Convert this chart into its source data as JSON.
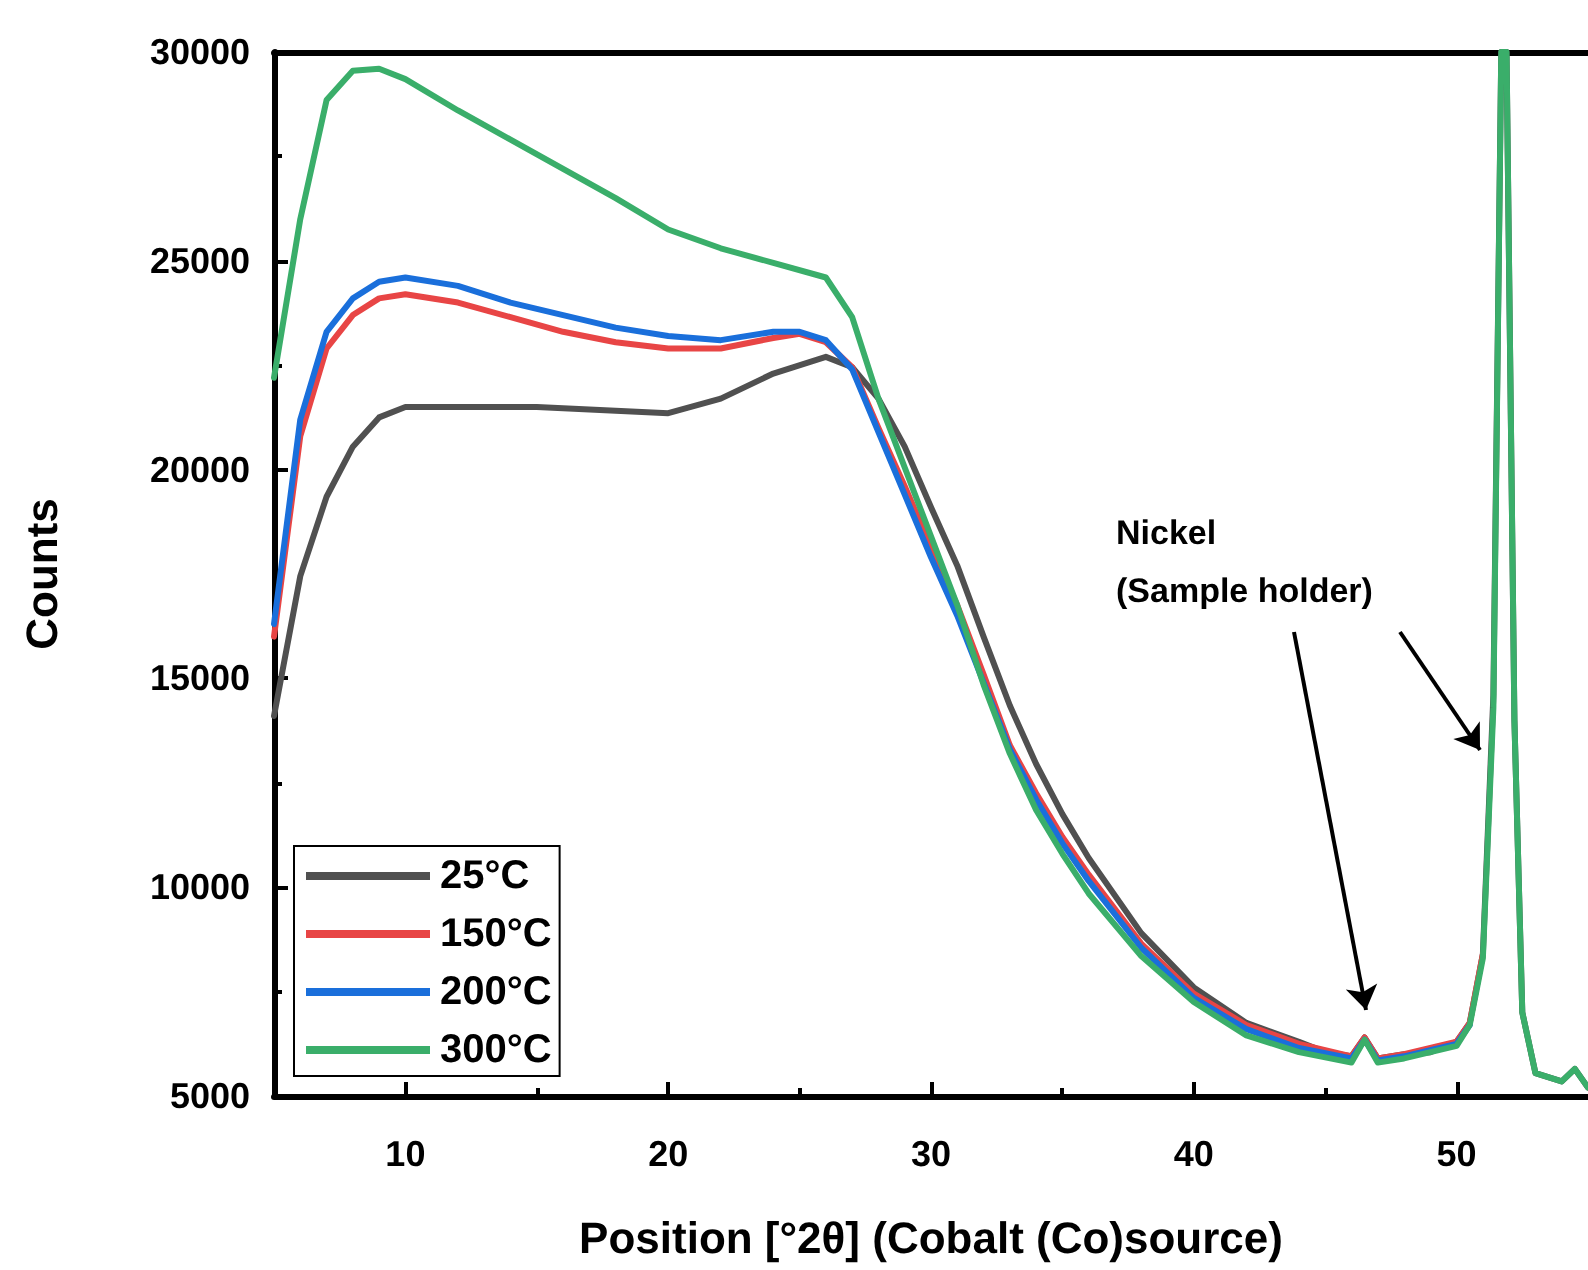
{
  "chart_data": {
    "type": "line",
    "xlabel": "Position [°2θ] (Cobalt (Co)source)",
    "ylabel": "Counts",
    "xlim": [
      5,
      55
    ],
    "xticks": [
      10,
      20,
      30,
      40,
      50
    ],
    "ylim": [
      5000,
      30000
    ],
    "yticks": [
      5000,
      10000,
      15000,
      20000,
      25000,
      30000
    ],
    "grid": false,
    "legend": "bottom left",
    "marker": "none",
    "line_style": "solid",
    "annotations": [
      "Nickel",
      "(Sample holder)"
    ],
    "series": [
      {
        "name": "25°C",
        "color": "#505050",
        "x": [
          5,
          6,
          7,
          8,
          9,
          10,
          15,
          20,
          22,
          24,
          26,
          27,
          28,
          29,
          30,
          31,
          32,
          33,
          34,
          35,
          36,
          38,
          40,
          42,
          44,
          45,
          46,
          46.5,
          47,
          48,
          49,
          50,
          50.5,
          51,
          51.4,
          51.7,
          51.9,
          52.2,
          52.5,
          53,
          54,
          54.5,
          55
        ],
        "values": [
          14100,
          17450,
          19350,
          20550,
          21250,
          21500,
          21500,
          21350,
          21700,
          22300,
          22700,
          22450,
          21700,
          20550,
          19100,
          17700,
          16000,
          14350,
          12950,
          11750,
          10700,
          8900,
          7600,
          6750,
          6300,
          6050,
          5950,
          6400,
          5900,
          6000,
          6050,
          6300,
          6750,
          8400,
          14600,
          30000,
          30000,
          14000,
          7000,
          5550,
          5350,
          5650,
          5200
        ]
      },
      {
        "name": "150°C",
        "color": "#e84545",
        "x": [
          5,
          6,
          7,
          8,
          9,
          10,
          12,
          14,
          16,
          18,
          20,
          22,
          24,
          25,
          26,
          27,
          28,
          29,
          30,
          31,
          32,
          33,
          34,
          35,
          36,
          38,
          40,
          42,
          44,
          46,
          46.5,
          47,
          48,
          50,
          50.5,
          51
        ],
        "values": [
          16000,
          20800,
          22900,
          23700,
          24100,
          24200,
          24000,
          23650,
          23300,
          23050,
          22900,
          22900,
          23150,
          23250,
          23050,
          22450,
          21000,
          19600,
          18150,
          16750,
          15100,
          13400,
          12250,
          11200,
          10300,
          8650,
          7450,
          6700,
          6250,
          5950,
          6400,
          5900,
          6000,
          6300,
          6750,
          8400
        ]
      },
      {
        "name": "200°C",
        "color": "#1a6fdb",
        "x": [
          5,
          6,
          7,
          8,
          9,
          10,
          12,
          14,
          16,
          18,
          20,
          22,
          24,
          25,
          26,
          27,
          28,
          29,
          30,
          31,
          32,
          33,
          34,
          35,
          36,
          38,
          40,
          42,
          44,
          46,
          46.5,
          47,
          48,
          50,
          50.5
        ],
        "values": [
          16300,
          21200,
          23300,
          24100,
          24500,
          24600,
          24400,
          24000,
          23700,
          23400,
          23200,
          23100,
          23300,
          23300,
          23100,
          22400,
          20900,
          19400,
          17900,
          16500,
          14900,
          13300,
          12100,
          11050,
          10150,
          8550,
          7350,
          6600,
          6150,
          5900,
          6350,
          5850,
          5950,
          6250,
          6700
        ]
      },
      {
        "name": "300°C",
        "color": "#3aae6a",
        "x": [
          5,
          6,
          7,
          8,
          9,
          10,
          12,
          14,
          16,
          18,
          20,
          22,
          24,
          26,
          27,
          28,
          29,
          30,
          31,
          32,
          33,
          34,
          35,
          36,
          38,
          40,
          42,
          44,
          46,
          46.5,
          47,
          48,
          50,
          50.5,
          51,
          51.4,
          51.7,
          51.9,
          52.2,
          52.5,
          53,
          54,
          54.5,
          55
        ],
        "values": [
          22200,
          26000,
          28850,
          29550,
          29600,
          29350,
          28600,
          27900,
          27200,
          26500,
          25750,
          25300,
          24950,
          24600,
          23650,
          21700,
          20050,
          18400,
          16750,
          14850,
          13200,
          11850,
          10800,
          9850,
          8350,
          7250,
          6450,
          6050,
          5800,
          6350,
          5800,
          5900,
          6200,
          6700,
          8300,
          14300,
          30000,
          30000,
          14000,
          7000,
          5550,
          5350,
          5650,
          5200
        ]
      }
    ]
  }
}
